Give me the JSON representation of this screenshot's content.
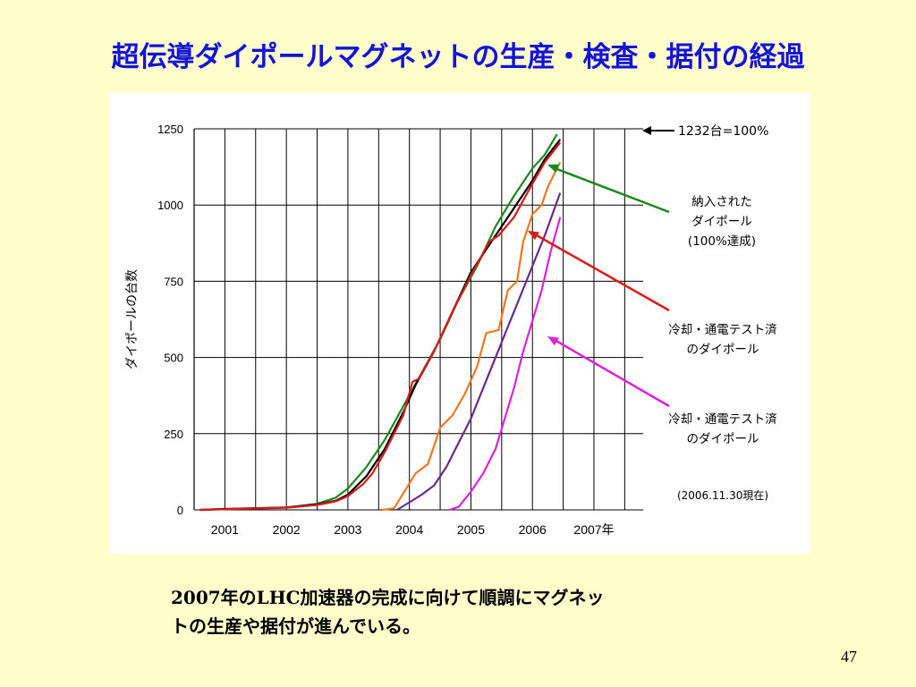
{
  "slide": {
    "title": "超伝導ダイポールマグネットの生産・検査・据付の経過",
    "caption_line1": "2007年のLHC加速器の完成に向けて順調にマグネッ",
    "caption_line2": "トの生産や据付が進んでいる。",
    "page_number": "47"
  },
  "chart_data": {
    "type": "line",
    "ylabel": "ダイポールの台数",
    "ylim": [
      0,
      1250
    ],
    "y_ticks": [
      0,
      250,
      500,
      750,
      1000,
      1250
    ],
    "x_range": [
      2000.5,
      2007.8
    ],
    "x_tick_labels": [
      "2001",
      "2002",
      "2003",
      "2004",
      "2005",
      "2006",
      "2007年"
    ],
    "grid": true,
    "target_label": "1232台=100%",
    "target_value": 1232,
    "date_note": "(2006.11.30現在)",
    "annotations": [
      {
        "text_lines": [
          "納入された",
          "ダイポール",
          "(100%達成)"
        ],
        "color": "#1a8a1a",
        "series": "green"
      },
      {
        "text_lines": [
          "冷却・通電テスト済",
          "のダイポール"
        ],
        "color": "#dd1a1a",
        "series": "red"
      },
      {
        "text_lines": [
          "冷却・通電テスト済",
          "のダイポール"
        ],
        "color": "#dd22dd",
        "series": "magenta"
      }
    ],
    "series": [
      {
        "id": "green",
        "color": "#1a8a1a",
        "points": [
          [
            2000.6,
            0
          ],
          [
            2001.0,
            3
          ],
          [
            2002.0,
            8
          ],
          [
            2002.5,
            20
          ],
          [
            2002.8,
            40
          ],
          [
            2003.0,
            70
          ],
          [
            2003.3,
            140
          ],
          [
            2003.6,
            230
          ],
          [
            2003.9,
            340
          ],
          [
            2004.2,
            450
          ],
          [
            2004.5,
            560
          ],
          [
            2004.8,
            690
          ],
          [
            2005.1,
            800
          ],
          [
            2005.4,
            930
          ],
          [
            2005.7,
            1030
          ],
          [
            2006.0,
            1120
          ],
          [
            2006.2,
            1165
          ],
          [
            2006.4,
            1232
          ]
        ]
      },
      {
        "id": "black",
        "color": "#000000",
        "points": [
          [
            2000.6,
            0
          ],
          [
            2001.0,
            3
          ],
          [
            2002.0,
            8
          ],
          [
            2002.5,
            18
          ],
          [
            2002.8,
            30
          ],
          [
            2003.0,
            50
          ],
          [
            2003.3,
            110
          ],
          [
            2003.6,
            200
          ],
          [
            2003.9,
            320
          ],
          [
            2004.1,
            410
          ],
          [
            2004.4,
            520
          ],
          [
            2004.7,
            650
          ],
          [
            2005.0,
            780
          ],
          [
            2005.4,
            900
          ],
          [
            2005.7,
            990
          ],
          [
            2006.0,
            1080
          ],
          [
            2006.2,
            1150
          ],
          [
            2006.45,
            1215
          ]
        ]
      },
      {
        "id": "red",
        "color": "#dd1a1a",
        "points": [
          [
            2000.6,
            0
          ],
          [
            2001.0,
            2
          ],
          [
            2002.0,
            7
          ],
          [
            2002.5,
            16
          ],
          [
            2002.8,
            28
          ],
          [
            2003.0,
            45
          ],
          [
            2003.25,
            85
          ],
          [
            2003.4,
            120
          ],
          [
            2003.6,
            190
          ],
          [
            2003.9,
            310
          ],
          [
            2004.05,
            420
          ],
          [
            2004.15,
            430
          ],
          [
            2004.4,
            520
          ],
          [
            2004.7,
            650
          ],
          [
            2005.0,
            770
          ],
          [
            2005.3,
            880
          ],
          [
            2005.45,
            900
          ],
          [
            2005.7,
            960
          ],
          [
            2006.0,
            1070
          ],
          [
            2006.2,
            1140
          ],
          [
            2006.45,
            1205
          ]
        ]
      },
      {
        "id": "orange",
        "color": "#f07820",
        "points": [
          [
            2003.55,
            0
          ],
          [
            2003.75,
            5
          ],
          [
            2003.95,
            70
          ],
          [
            2004.1,
            120
          ],
          [
            2004.3,
            150
          ],
          [
            2004.5,
            270
          ],
          [
            2004.7,
            310
          ],
          [
            2004.9,
            380
          ],
          [
            2005.1,
            470
          ],
          [
            2005.25,
            580
          ],
          [
            2005.45,
            590
          ],
          [
            2005.6,
            720
          ],
          [
            2005.75,
            750
          ],
          [
            2005.85,
            880
          ],
          [
            2006.0,
            970
          ],
          [
            2006.15,
            1000
          ],
          [
            2006.25,
            1060
          ],
          [
            2006.45,
            1140
          ]
        ]
      },
      {
        "id": "purple",
        "color": "#6a2a8a",
        "points": [
          [
            2003.8,
            0
          ],
          [
            2004.0,
            25
          ],
          [
            2004.2,
            50
          ],
          [
            2004.4,
            80
          ],
          [
            2004.6,
            140
          ],
          [
            2004.8,
            220
          ],
          [
            2005.0,
            300
          ],
          [
            2005.2,
            400
          ],
          [
            2005.4,
            500
          ],
          [
            2005.6,
            600
          ],
          [
            2005.8,
            700
          ],
          [
            2006.0,
            800
          ],
          [
            2006.2,
            900
          ],
          [
            2006.45,
            1040
          ]
        ]
      },
      {
        "id": "magenta",
        "color": "#dd22dd",
        "points": [
          [
            2004.65,
            0
          ],
          [
            2004.8,
            10
          ],
          [
            2005.0,
            60
          ],
          [
            2005.2,
            120
          ],
          [
            2005.4,
            200
          ],
          [
            2005.55,
            300
          ],
          [
            2005.7,
            400
          ],
          [
            2005.85,
            520
          ],
          [
            2006.0,
            620
          ],
          [
            2006.15,
            720
          ],
          [
            2006.3,
            850
          ],
          [
            2006.45,
            960
          ]
        ]
      }
    ]
  }
}
